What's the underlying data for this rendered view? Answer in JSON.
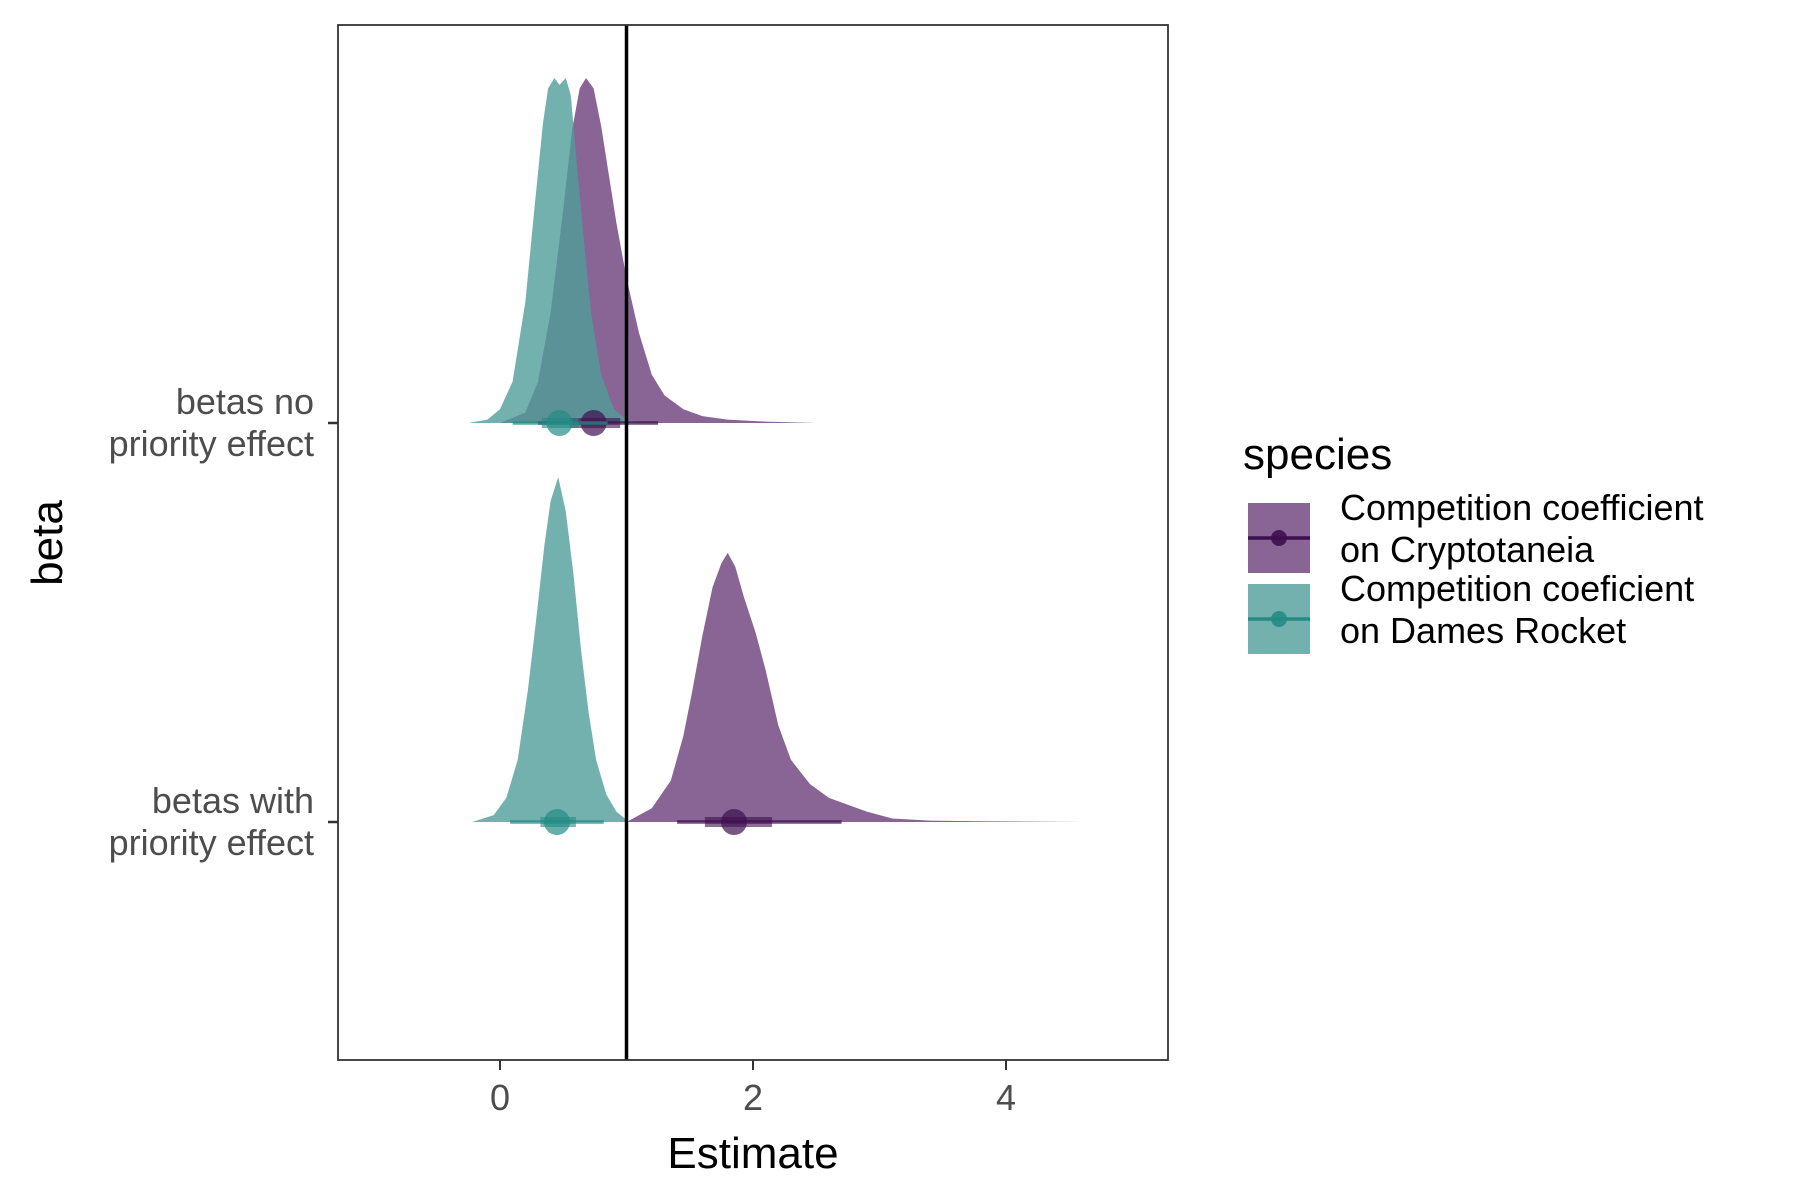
{
  "chart_data": {
    "type": "density",
    "orientation": "horizontal",
    "xlabel": "Estimate",
    "ylabel": "beta",
    "xlim": [
      -1.28,
      5.28
    ],
    "x_ticks": [
      0,
      2,
      4
    ],
    "reference_line_x": 1,
    "grid": false,
    "legend_position": "right",
    "categories": [
      "betas no\npriority effect",
      "betas with\npriority effect"
    ],
    "legend": {
      "title": "species",
      "entries": [
        {
          "label": "Competition coefficient\non Cryptotaneia",
          "color": "#6a3f7a",
          "point_color": "#3d0f4f"
        },
        {
          "label": "Competition coeficient\non Dames Rocket",
          "color": "#4f9e99",
          "point_color": "#238b84"
        }
      ]
    },
    "series": [
      {
        "name": "Competition coefficient\non Cryptotaneia",
        "category": 0,
        "median": 0.74,
        "interval_66": [
          0.55,
          0.95
        ],
        "interval_95": [
          0.3,
          1.25
        ],
        "density": [
          [
            0.0,
            0.0
          ],
          [
            0.2,
            0.03
          ],
          [
            0.3,
            0.12
          ],
          [
            0.4,
            0.32
          ],
          [
            0.5,
            0.62
          ],
          [
            0.57,
            0.85
          ],
          [
            0.63,
            0.97
          ],
          [
            0.68,
            1.0
          ],
          [
            0.74,
            0.97
          ],
          [
            0.8,
            0.86
          ],
          [
            0.86,
            0.72
          ],
          [
            0.92,
            0.58
          ],
          [
            1.0,
            0.42
          ],
          [
            1.1,
            0.26
          ],
          [
            1.2,
            0.14
          ],
          [
            1.3,
            0.08
          ],
          [
            1.45,
            0.04
          ],
          [
            1.6,
            0.02
          ],
          [
            1.8,
            0.01
          ],
          [
            2.1,
            0.004
          ],
          [
            2.5,
            0.0
          ]
        ]
      },
      {
        "name": "Competition coeficient\non Dames Rocket",
        "category": 0,
        "median": 0.47,
        "interval_66": [
          0.33,
          0.62
        ],
        "interval_95": [
          0.1,
          0.85
        ],
        "density": [
          [
            -0.25,
            0.0
          ],
          [
            -0.1,
            0.01
          ],
          [
            0.0,
            0.04
          ],
          [
            0.1,
            0.12
          ],
          [
            0.2,
            0.35
          ],
          [
            0.28,
            0.65
          ],
          [
            0.34,
            0.87
          ],
          [
            0.38,
            0.97
          ],
          [
            0.43,
            1.0
          ],
          [
            0.47,
            0.98
          ],
          [
            0.52,
            1.0
          ],
          [
            0.56,
            0.95
          ],
          [
            0.6,
            0.78
          ],
          [
            0.66,
            0.54
          ],
          [
            0.72,
            0.32
          ],
          [
            0.8,
            0.14
          ],
          [
            0.9,
            0.04
          ],
          [
            1.0,
            0.01
          ],
          [
            1.1,
            0.0
          ]
        ]
      },
      {
        "name": "Competition coefficient\non Cryptotaneia",
        "category": 1,
        "median": 1.85,
        "interval_66": [
          1.62,
          2.15
        ],
        "interval_95": [
          1.4,
          2.7
        ],
        "density": [
          [
            1.0,
            0.0
          ],
          [
            1.2,
            0.04
          ],
          [
            1.35,
            0.12
          ],
          [
            1.45,
            0.25
          ],
          [
            1.52,
            0.38
          ],
          [
            1.6,
            0.54
          ],
          [
            1.68,
            0.68
          ],
          [
            1.75,
            0.75
          ],
          [
            1.8,
            0.78
          ],
          [
            1.86,
            0.74
          ],
          [
            1.93,
            0.65
          ],
          [
            2.02,
            0.55
          ],
          [
            2.1,
            0.44
          ],
          [
            2.2,
            0.28
          ],
          [
            2.3,
            0.18
          ],
          [
            2.45,
            0.11
          ],
          [
            2.6,
            0.07
          ],
          [
            2.75,
            0.05
          ],
          [
            2.9,
            0.03
          ],
          [
            3.1,
            0.01
          ],
          [
            3.4,
            0.004
          ],
          [
            3.8,
            0.002
          ],
          [
            4.6,
            0.0
          ]
        ]
      },
      {
        "name": "Competition coeficient\non Dames Rocket",
        "category": 1,
        "median": 0.45,
        "interval_66": [
          0.32,
          0.6
        ],
        "interval_95": [
          0.08,
          0.82
        ],
        "density": [
          [
            -0.22,
            0.0
          ],
          [
            -0.05,
            0.02
          ],
          [
            0.05,
            0.07
          ],
          [
            0.14,
            0.18
          ],
          [
            0.22,
            0.38
          ],
          [
            0.29,
            0.6
          ],
          [
            0.35,
            0.8
          ],
          [
            0.4,
            0.93
          ],
          [
            0.46,
            1.0
          ],
          [
            0.52,
            0.9
          ],
          [
            0.58,
            0.72
          ],
          [
            0.64,
            0.5
          ],
          [
            0.7,
            0.32
          ],
          [
            0.76,
            0.18
          ],
          [
            0.84,
            0.08
          ],
          [
            0.92,
            0.03
          ],
          [
            1.02,
            0.0
          ]
        ]
      }
    ]
  }
}
